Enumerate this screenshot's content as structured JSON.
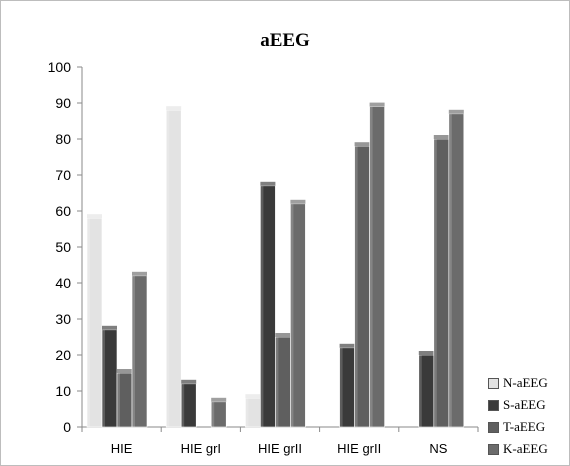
{
  "chart_data": {
    "type": "bar",
    "title": "aEEG",
    "xlabel": "",
    "ylabel": "",
    "ylim": [
      0,
      100
    ],
    "yticks": [
      0,
      10,
      20,
      30,
      40,
      50,
      60,
      70,
      80,
      90,
      100
    ],
    "categories": [
      "HIE",
      "HIE grI",
      "HIE grII",
      "HIE grII",
      "NS"
    ],
    "series": [
      {
        "name": "N-aEEG",
        "color": "#e3e3e3",
        "values": [
          58,
          88,
          8,
          0,
          0
        ]
      },
      {
        "name": "S-aEEG",
        "color": "#3a3a3a",
        "values": [
          27,
          12,
          67,
          22,
          20
        ]
      },
      {
        "name": "T-aEEG",
        "color": "#5f5f5f",
        "values": [
          15,
          0,
          25,
          78,
          80
        ]
      },
      {
        "name": "K-aEEG",
        "color": "#6b6b6b",
        "values": [
          42,
          7,
          62,
          89,
          87
        ]
      }
    ],
    "grid": false,
    "legend_position": "bottom-right"
  }
}
